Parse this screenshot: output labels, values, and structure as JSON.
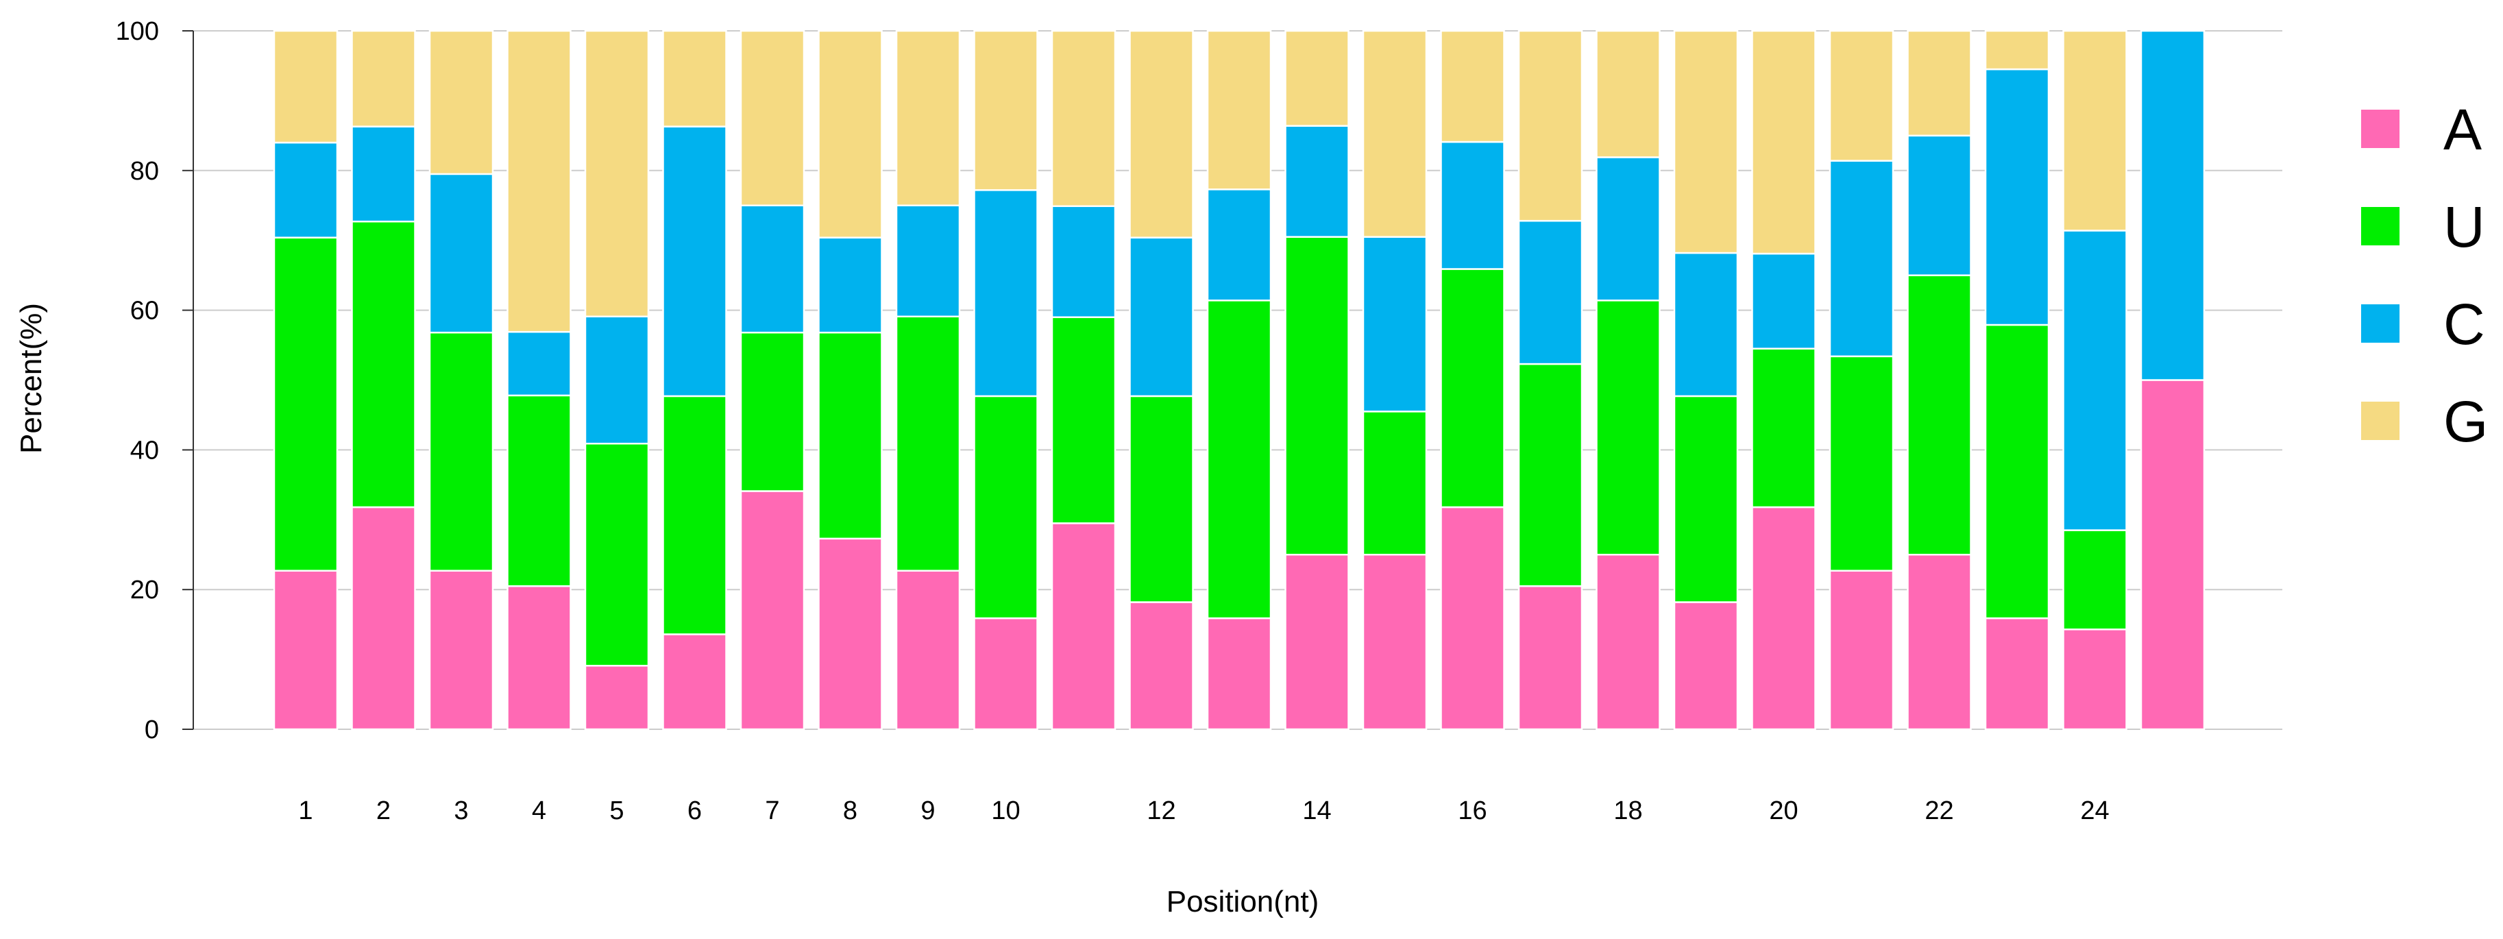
{
  "chart_data": {
    "type": "bar",
    "stacked": true,
    "title": "",
    "xlabel": "Position(nt)",
    "ylabel": "Percent(%)",
    "ylim": [
      0,
      100
    ],
    "yticks": [
      0,
      20,
      40,
      60,
      80,
      100
    ],
    "grid": true,
    "legend_position": "right",
    "categories": [
      "1",
      "2",
      "3",
      "4",
      "5",
      "6",
      "7",
      "8",
      "9",
      "10",
      "11",
      "12",
      "13",
      "14",
      "15",
      "16",
      "17",
      "18",
      "19",
      "20",
      "21",
      "22",
      "23",
      "24",
      "25"
    ],
    "x_tick_labels": [
      "1",
      "2",
      "3",
      "4",
      "5",
      "6",
      "7",
      "8",
      "9",
      "10",
      "",
      "12",
      "",
      "14",
      "",
      "16",
      "",
      "18",
      "",
      "20",
      "",
      "22",
      "",
      "24",
      ""
    ],
    "series": [
      {
        "name": "A",
        "color": "#ff69b4",
        "values": [
          22.7,
          31.8,
          22.7,
          20.5,
          9.1,
          13.6,
          34.1,
          27.3,
          22.7,
          15.9,
          29.5,
          18.2,
          15.9,
          25.0,
          25.0,
          31.8,
          20.5,
          25.0,
          18.2,
          31.8,
          22.7,
          25.0,
          15.9,
          14.3,
          50.0
        ]
      },
      {
        "name": "U",
        "color": "#00ee00",
        "values": [
          47.7,
          40.9,
          34.1,
          27.3,
          31.8,
          34.1,
          22.7,
          29.5,
          36.4,
          31.8,
          29.5,
          29.5,
          45.5,
          45.5,
          20.5,
          34.1,
          31.8,
          36.4,
          29.5,
          22.7,
          30.7,
          40.0,
          42.0,
          14.2,
          0.0
        ]
      },
      {
        "name": "C",
        "color": "#00b2ee",
        "values": [
          13.6,
          13.6,
          22.7,
          9.1,
          18.2,
          38.6,
          18.2,
          13.6,
          15.9,
          29.5,
          15.9,
          22.7,
          15.9,
          15.9,
          25.0,
          18.2,
          20.5,
          20.5,
          20.5,
          13.6,
          28.0,
          20.0,
          36.6,
          42.9,
          50.0
        ]
      },
      {
        "name": "G",
        "color": "#f5da82",
        "values": [
          16.0,
          13.7,
          20.5,
          43.1,
          40.9,
          13.7,
          25.0,
          29.6,
          25.0,
          22.8,
          25.1,
          29.6,
          22.7,
          13.6,
          29.5,
          15.9,
          27.2,
          18.1,
          31.8,
          31.9,
          18.6,
          15.0,
          5.5,
          28.6,
          0.0
        ]
      }
    ]
  }
}
